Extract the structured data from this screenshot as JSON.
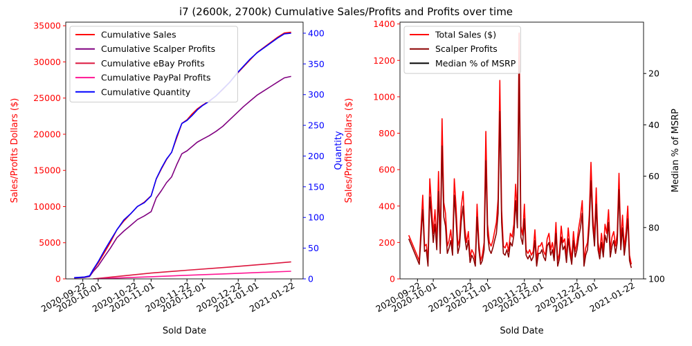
{
  "title": "i7 (2600k, 2700k) Cumulative Sales/Profits and Profits over time",
  "chart_data": [
    {
      "type": "line",
      "xlabel": "Sold Date",
      "ylabel": "Sales/Profits Dollars ($)",
      "ylabel_color": "#ff0000",
      "y2label": "Quantity",
      "y2label_color": "#0000ff",
      "xlim": [
        "2020-09-12",
        "2021-01-29"
      ],
      "ylim": [
        0,
        35500
      ],
      "y2lim": [
        0,
        418
      ],
      "x_ticks": [
        "2020-09-22",
        "2020-10-01",
        "2020-10-22",
        "2020-11-01",
        "2020-11-22",
        "2020-12-01",
        "2020-12-22",
        "2021-01-01",
        "2021-01-22"
      ],
      "y_ticks": [
        0,
        5000,
        10000,
        15000,
        20000,
        25000,
        30000,
        35000
      ],
      "y2_ticks": [
        0,
        50,
        100,
        150,
        200,
        250,
        300,
        350,
        400
      ],
      "legend_position": "top-left",
      "legend": [
        {
          "name": "Cumulative Sales",
          "color": "#ff0000"
        },
        {
          "name": "Cumulative Scalper Profits",
          "color": "#800080"
        },
        {
          "name": "Cumulative eBay Profits",
          "color": "#dc143c"
        },
        {
          "name": "Cumulative PayPal Profits",
          "color": "#ff1493"
        },
        {
          "name": "Cumulative Quantity",
          "color": "#0000ff"
        }
      ],
      "series": [
        {
          "name": "Cumulative Sales",
          "axis": "left",
          "color": "#ff0000",
          "x": [
            "2020-09-17",
            "2020-09-23",
            "2020-09-26",
            "2020-09-28",
            "2020-10-01",
            "2020-10-05",
            "2020-10-08",
            "2020-10-12",
            "2020-10-16",
            "2020-10-20",
            "2020-10-24",
            "2020-10-28",
            "2020-11-01",
            "2020-11-04",
            "2020-11-07",
            "2020-11-10",
            "2020-11-13",
            "2020-11-16",
            "2020-11-19",
            "2020-11-22",
            "2020-11-25",
            "2020-11-28",
            "2020-12-01",
            "2020-12-05",
            "2020-12-09",
            "2020-12-13",
            "2020-12-17",
            "2020-12-21",
            "2020-12-25",
            "2020-12-29",
            "2021-01-02",
            "2021-01-06",
            "2021-01-10",
            "2021-01-14",
            "2021-01-18",
            "2021-01-22"
          ],
          "values": [
            150,
            250,
            400,
            1200,
            2200,
            3800,
            5000,
            6800,
            8000,
            9000,
            10000,
            10600,
            11500,
            13800,
            15200,
            16500,
            17500,
            19500,
            21500,
            22000,
            22800,
            23500,
            24000,
            24600,
            25300,
            26200,
            27200,
            28300,
            29300,
            30300,
            31300,
            32000,
            32700,
            33400,
            34000,
            34100
          ]
        },
        {
          "name": "Cumulative Scalper Profits",
          "axis": "left",
          "color": "#800080",
          "x": [
            "2020-09-17",
            "2020-09-23",
            "2020-09-26",
            "2020-09-28",
            "2020-10-01",
            "2020-10-05",
            "2020-10-08",
            "2020-10-12",
            "2020-10-16",
            "2020-10-20",
            "2020-10-24",
            "2020-10-28",
            "2020-11-01",
            "2020-11-04",
            "2020-11-07",
            "2020-11-10",
            "2020-11-13",
            "2020-11-16",
            "2020-11-19",
            "2020-11-22",
            "2020-11-25",
            "2020-11-28",
            "2020-12-01",
            "2020-12-05",
            "2020-12-09",
            "2020-12-13",
            "2020-12-17",
            "2020-12-21",
            "2020-12-25",
            "2020-12-29",
            "2021-01-02",
            "2021-01-06",
            "2021-01-10",
            "2021-01-14",
            "2021-01-18",
            "2021-01-22"
          ],
          "values": [
            120,
            200,
            330,
            1000,
            1800,
            3200,
            4200,
            5700,
            6600,
            7400,
            8200,
            8700,
            9300,
            11200,
            12200,
            13300,
            14100,
            15800,
            17300,
            17700,
            18300,
            18900,
            19300,
            19800,
            20400,
            21100,
            22000,
            22900,
            23800,
            24600,
            25400,
            26000,
            26600,
            27200,
            27800,
            28000
          ]
        },
        {
          "name": "Cumulative eBay Profits",
          "axis": "left",
          "color": "#dc143c",
          "x": [
            "2020-09-28",
            "2020-10-15",
            "2020-11-01",
            "2020-11-22",
            "2020-12-15",
            "2021-01-05",
            "2021-01-22"
          ],
          "values": [
            0,
            400,
            800,
            1200,
            1600,
            2000,
            2350
          ]
        },
        {
          "name": "Cumulative PayPal Profits",
          "axis": "left",
          "color": "#ff1493",
          "x": [
            "2020-09-28",
            "2020-10-15",
            "2020-11-01",
            "2020-11-22",
            "2020-12-15",
            "2021-01-05",
            "2021-01-22"
          ],
          "values": [
            0,
            150,
            300,
            500,
            700,
            900,
            1050
          ]
        },
        {
          "name": "Cumulative Quantity",
          "axis": "right",
          "color": "#0000ff",
          "x": [
            "2020-09-17",
            "2020-09-23",
            "2020-09-26",
            "2020-09-28",
            "2020-10-01",
            "2020-10-05",
            "2020-10-08",
            "2020-10-12",
            "2020-10-16",
            "2020-10-20",
            "2020-10-24",
            "2020-10-28",
            "2020-11-01",
            "2020-11-04",
            "2020-11-07",
            "2020-11-10",
            "2020-11-13",
            "2020-11-16",
            "2020-11-19",
            "2020-11-22",
            "2020-11-25",
            "2020-11-28",
            "2020-12-01",
            "2020-12-05",
            "2020-12-09",
            "2020-12-13",
            "2020-12-17",
            "2020-12-21",
            "2020-12-25",
            "2020-12-29",
            "2021-01-02",
            "2021-01-06",
            "2021-01-10",
            "2021-01-14",
            "2021-01-18",
            "2021-01-22"
          ],
          "values": [
            2,
            3,
            5,
            15,
            28,
            48,
            62,
            80,
            96,
            106,
            118,
            124,
            135,
            163,
            180,
            195,
            206,
            232,
            253,
            258,
            266,
            275,
            282,
            289,
            298,
            309,
            320,
            334,
            346,
            358,
            368,
            376,
            384,
            392,
            399,
            400
          ]
        }
      ]
    },
    {
      "type": "line",
      "xlabel": "Sold Date",
      "ylabel": "Sales/Profits Dollars ($)",
      "ylabel_color": "#ff0000",
      "y2label": "Median % of MSRP",
      "y2label_color": "#000000",
      "y2_inverted": true,
      "xlim": [
        "2020-09-12",
        "2021-01-29"
      ],
      "ylim": [
        0,
        1410
      ],
      "y2lim": [
        100,
        0
      ],
      "x_ticks": [
        "2020-09-22",
        "2020-10-01",
        "2020-10-22",
        "2020-11-01",
        "2020-11-22",
        "2020-12-01",
        "2020-12-22",
        "2021-01-01",
        "2021-01-22"
      ],
      "y_ticks": [
        0,
        200,
        400,
        600,
        800,
        1000,
        1200,
        1400
      ],
      "y2_ticks": [
        20,
        40,
        60,
        80,
        100
      ],
      "legend_position": "top-left",
      "legend": [
        {
          "name": "Total Sales ($)",
          "color": "#ff0000"
        },
        {
          "name": "Scalper Profits",
          "color": "#8b0000"
        },
        {
          "name": "Median % of MSRP",
          "color": "#000000"
        }
      ],
      "series": [
        {
          "name": "Total Sales ($)",
          "axis": "left",
          "color": "#ff0000",
          "x": [
            "2020-09-17",
            "2020-09-23",
            "2020-09-25",
            "2020-09-26",
            "2020-09-27",
            "2020-09-28",
            "2020-09-29",
            "2020-09-30",
            "2020-10-01",
            "2020-10-02",
            "2020-10-03",
            "2020-10-04",
            "2020-10-05",
            "2020-10-06",
            "2020-10-07",
            "2020-10-08",
            "2020-10-09",
            "2020-10-10",
            "2020-10-11",
            "2020-10-12",
            "2020-10-13",
            "2020-10-14",
            "2020-10-15",
            "2020-10-16",
            "2020-10-17",
            "2020-10-18",
            "2020-10-19",
            "2020-10-20",
            "2020-10-21",
            "2020-10-22",
            "2020-10-23",
            "2020-10-24",
            "2020-10-25",
            "2020-10-26",
            "2020-10-27",
            "2020-10-28",
            "2020-10-29",
            "2020-10-30",
            "2020-10-31",
            "2020-11-01",
            "2020-11-02",
            "2020-11-03",
            "2020-11-04",
            "2020-11-05",
            "2020-11-06",
            "2020-11-07",
            "2020-11-08",
            "2020-11-09",
            "2020-11-10",
            "2020-11-11",
            "2020-11-12",
            "2020-11-13",
            "2020-11-14",
            "2020-11-15",
            "2020-11-16",
            "2020-11-17",
            "2020-11-18",
            "2020-11-19",
            "2020-11-20",
            "2020-11-21",
            "2020-11-22",
            "2020-11-23",
            "2020-11-24",
            "2020-11-25",
            "2020-11-26",
            "2020-11-27",
            "2020-11-28",
            "2020-11-29",
            "2020-11-30",
            "2020-12-01",
            "2020-12-02",
            "2020-12-03",
            "2020-12-04",
            "2020-12-05",
            "2020-12-06",
            "2020-12-07",
            "2020-12-08",
            "2020-12-09",
            "2020-12-10",
            "2020-12-11",
            "2020-12-12",
            "2020-12-13",
            "2020-12-14",
            "2020-12-15",
            "2020-12-16",
            "2020-12-17",
            "2020-12-18",
            "2020-12-19",
            "2020-12-20",
            "2020-12-21",
            "2020-12-22",
            "2020-12-23",
            "2020-12-24",
            "2020-12-25",
            "2020-12-26",
            "2020-12-27",
            "2020-12-28",
            "2020-12-29",
            "2020-12-30",
            "2020-12-31",
            "2021-01-01",
            "2021-01-02",
            "2021-01-03",
            "2021-01-04",
            "2021-01-05",
            "2021-01-06",
            "2021-01-07",
            "2021-01-08",
            "2021-01-09",
            "2021-01-10",
            "2021-01-11",
            "2021-01-12",
            "2021-01-13",
            "2021-01-14",
            "2021-01-15",
            "2021-01-16",
            "2021-01-17",
            "2021-01-18",
            "2021-01-19",
            "2021-01-20",
            "2021-01-21",
            "2021-01-22"
          ],
          "values": [
            240,
            100,
            460,
            180,
            190,
            100,
            550,
            400,
            250,
            380,
            200,
            590,
            180,
            880,
            420,
            360,
            180,
            210,
            270,
            160,
            550,
            400,
            180,
            220,
            400,
            480,
            280,
            200,
            260,
            120,
            160,
            140,
            100,
            410,
            200,
            100,
            130,
            200,
            810,
            300,
            200,
            180,
            210,
            260,
            310,
            440,
            1090,
            380,
            180,
            170,
            200,
            150,
            250,
            230,
            300,
            520,
            350,
            1350,
            290,
            240,
            410,
            160,
            140,
            160,
            130,
            150,
            270,
            100,
            180,
            180,
            200,
            150,
            130,
            220,
            250,
            160,
            200,
            130,
            310,
            100,
            140,
            290,
            200,
            220,
            120,
            280,
            180,
            110,
            260,
            150,
            200,
            280,
            340,
            430,
            100,
            170,
            200,
            350,
            640,
            350,
            220,
            500,
            200,
            140,
            250,
            150,
            300,
            250,
            380,
            160,
            230,
            260,
            180,
            250,
            580,
            200,
            350,
            170,
            260,
            400,
            130,
            80
          ]
        },
        {
          "name": "Scalper Profits",
          "axis": "left",
          "color": "#8b0000",
          "x": [
            "2020-09-17",
            "2020-09-23",
            "2020-09-25",
            "2020-09-26",
            "2020-09-27",
            "2020-09-28",
            "2020-09-29",
            "2020-09-30",
            "2020-10-01",
            "2020-10-02",
            "2020-10-03",
            "2020-10-04",
            "2020-10-05",
            "2020-10-06",
            "2020-10-07",
            "2020-10-08",
            "2020-10-09",
            "2020-10-10",
            "2020-10-11",
            "2020-10-12",
            "2020-10-13",
            "2020-10-14",
            "2020-10-15",
            "2020-10-16",
            "2020-10-17",
            "2020-10-18",
            "2020-10-19",
            "2020-10-20",
            "2020-10-21",
            "2020-10-22",
            "2020-10-23",
            "2020-10-24",
            "2020-10-25",
            "2020-10-26",
            "2020-10-27",
            "2020-10-28",
            "2020-10-29",
            "2020-10-30",
            "2020-10-31",
            "2020-11-01",
            "2020-11-02",
            "2020-11-03",
            "2020-11-04",
            "2020-11-05",
            "2020-11-06",
            "2020-11-07",
            "2020-11-08",
            "2020-11-09",
            "2020-11-10",
            "2020-11-11",
            "2020-11-12",
            "2020-11-13",
            "2020-11-14",
            "2020-11-15",
            "2020-11-16",
            "2020-11-17",
            "2020-11-18",
            "2020-11-19",
            "2020-11-20",
            "2020-11-21",
            "2020-11-22",
            "2020-11-23",
            "2020-11-24",
            "2020-11-25",
            "2020-11-26",
            "2020-11-27",
            "2020-11-28",
            "2020-11-29",
            "2020-11-30",
            "2020-12-01",
            "2020-12-02",
            "2020-12-03",
            "2020-12-04",
            "2020-12-05",
            "2020-12-06",
            "2020-12-07",
            "2020-12-08",
            "2020-12-09",
            "2020-12-10",
            "2020-12-11",
            "2020-12-12",
            "2020-12-13",
            "2020-12-14",
            "2020-12-15",
            "2020-12-16",
            "2020-12-17",
            "2020-12-18",
            "2020-12-19",
            "2020-12-20",
            "2020-12-21",
            "2020-12-22",
            "2020-12-23",
            "2020-12-24",
            "2020-12-25",
            "2020-12-26",
            "2020-12-27",
            "2020-12-28",
            "2020-12-29",
            "2020-12-30",
            "2020-12-31",
            "2021-01-01",
            "2021-01-02",
            "2021-01-03",
            "2021-01-04",
            "2021-01-05",
            "2021-01-06",
            "2021-01-07",
            "2021-01-08",
            "2021-01-09",
            "2021-01-10",
            "2021-01-11",
            "2021-01-12",
            "2021-01-13",
            "2021-01-14",
            "2021-01-15",
            "2021-01-16",
            "2021-01-17",
            "2021-01-18",
            "2021-01-19",
            "2021-01-20",
            "2021-01-21",
            "2021-01-22"
          ],
          "values": [
            220,
            80,
            380,
            150,
            160,
            70,
            450,
            330,
            200,
            300,
            160,
            480,
            140,
            730,
            340,
            290,
            140,
            170,
            210,
            130,
            460,
            330,
            140,
            180,
            320,
            400,
            230,
            160,
            210,
            90,
            130,
            110,
            70,
            340,
            160,
            80,
            100,
            160,
            650,
            240,
            160,
            140,
            170,
            210,
            250,
            360,
            920,
            310,
            140,
            130,
            160,
            120,
            200,
            180,
            240,
            430,
            280,
            1170,
            230,
            190,
            330,
            130,
            110,
            130,
            100,
            120,
            210,
            70,
            140,
            140,
            160,
            120,
            100,
            180,
            200,
            130,
            160,
            100,
            250,
            70,
            110,
            230,
            160,
            180,
            90,
            220,
            140,
            80,
            210,
            120,
            160,
            230,
            280,
            360,
            70,
            130,
            160,
            290,
            540,
            290,
            180,
            410,
            160,
            110,
            200,
            120,
            240,
            200,
            310,
            120,
            180,
            210,
            140,
            200,
            490,
            160,
            280,
            130,
            210,
            330,
            100,
            60
          ]
        },
        {
          "name": "Median % of MSRP",
          "axis": "right",
          "color": "#000000",
          "values": []
        }
      ]
    }
  ]
}
